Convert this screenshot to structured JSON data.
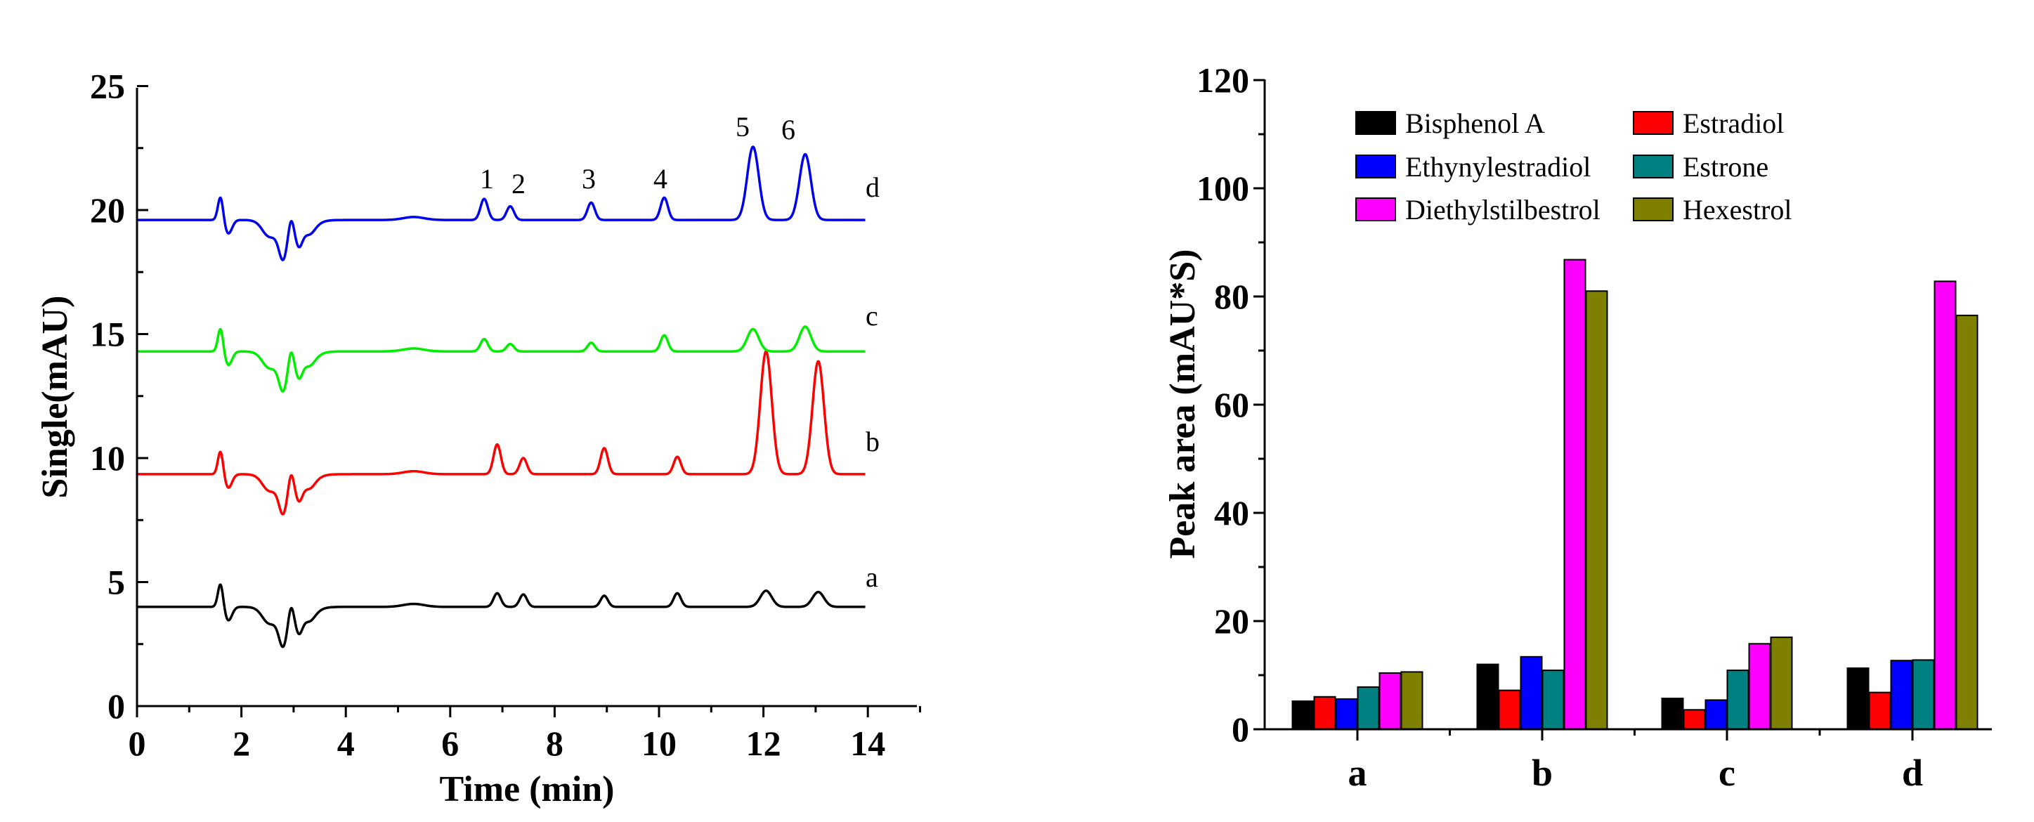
{
  "chart_data": [
    {
      "type": "line",
      "title": "",
      "xlabel": "Time (min)",
      "ylabel": "Single(mAU)",
      "xlim": [
        0,
        15
      ],
      "ylim": [
        0,
        25
      ],
      "x_ticks": [
        "0",
        "2",
        "4",
        "6",
        "8",
        "10",
        "12",
        "14"
      ],
      "y_ticks": [
        "0",
        "5",
        "10",
        "15",
        "20",
        "25"
      ],
      "baseline_artifact": [
        {
          "t": 1.6,
          "a": 0.95,
          "w": 0.05
        },
        {
          "t": 1.75,
          "a": -0.55,
          "w": 0.07
        },
        {
          "t": 2.55,
          "a": -0.45,
          "w": 0.15
        },
        {
          "t": 2.8,
          "a": -1.25,
          "w": 0.08
        },
        {
          "t": 2.95,
          "a": 0.5,
          "w": 0.05
        },
        {
          "t": 3.1,
          "a": -0.8,
          "w": 0.07
        },
        {
          "t": 3.3,
          "a": -0.35,
          "w": 0.1
        },
        {
          "t": 5.3,
          "a": 0.12,
          "w": 0.2
        }
      ],
      "peak_times": [
        6.9,
        7.4,
        8.95,
        10.35,
        12.05,
        13.05
      ],
      "series": [
        {
          "name": "a",
          "color": "#000000",
          "baseline": 4.0,
          "time_end": 13.95,
          "time_shift": 0,
          "peak_heights": [
            0.55,
            0.5,
            0.45,
            0.55,
            0.65,
            0.6
          ]
        },
        {
          "name": "b",
          "color": "#ff0000",
          "baseline": 9.35,
          "time_end": 13.95,
          "time_shift": 0,
          "peak_heights": [
            1.2,
            0.65,
            1.05,
            0.7,
            4.95,
            4.55
          ]
        },
        {
          "name": "c",
          "color": "#00ee00",
          "baseline": 14.3,
          "time_end": 13.95,
          "time_shift": -0.25,
          "peak_heights": [
            0.5,
            0.3,
            0.35,
            0.65,
            0.9,
            1.0
          ]
        },
        {
          "name": "d",
          "color": "#0000ee",
          "baseline": 19.6,
          "time_end": 13.95,
          "time_shift": -0.25,
          "peak_heights": [
            0.85,
            0.55,
            0.7,
            0.9,
            2.95,
            2.65
          ]
        }
      ],
      "peak_labels": [
        "1",
        "2",
        "3",
        "4",
        "5",
        "6"
      ],
      "curve_labels": [
        "a",
        "b",
        "c",
        "d"
      ]
    },
    {
      "type": "bar",
      "title": "",
      "xlabel": "",
      "ylabel": "Peak area (mAU*S)",
      "ylim": [
        0,
        120
      ],
      "y_ticks": [
        "0",
        "20",
        "40",
        "60",
        "80",
        "100",
        "120"
      ],
      "categories": [
        "a",
        "b",
        "c",
        "d"
      ],
      "legend_position": "top",
      "series": [
        {
          "name": "Bisphenol A",
          "color": "#000000",
          "values": [
            5.2,
            12.0,
            5.7,
            11.3
          ]
        },
        {
          "name": "Estradiol",
          "color": "#ff0000",
          "values": [
            6.0,
            7.2,
            3.6,
            6.8
          ]
        },
        {
          "name": "Ethynylestradiol",
          "color": "#0000ff",
          "values": [
            5.6,
            13.4,
            5.4,
            12.7
          ]
        },
        {
          "name": "Estrone",
          "color": "#008080",
          "values": [
            7.8,
            10.9,
            10.9,
            12.8
          ]
        },
        {
          "name": "Diethylstilbestrol",
          "color": "#ff00ff",
          "values": [
            10.4,
            86.8,
            15.8,
            82.8
          ]
        },
        {
          "name": "Hexestrol",
          "color": "#808000",
          "values": [
            10.6,
            81.0,
            17.0,
            76.5
          ]
        }
      ]
    }
  ]
}
